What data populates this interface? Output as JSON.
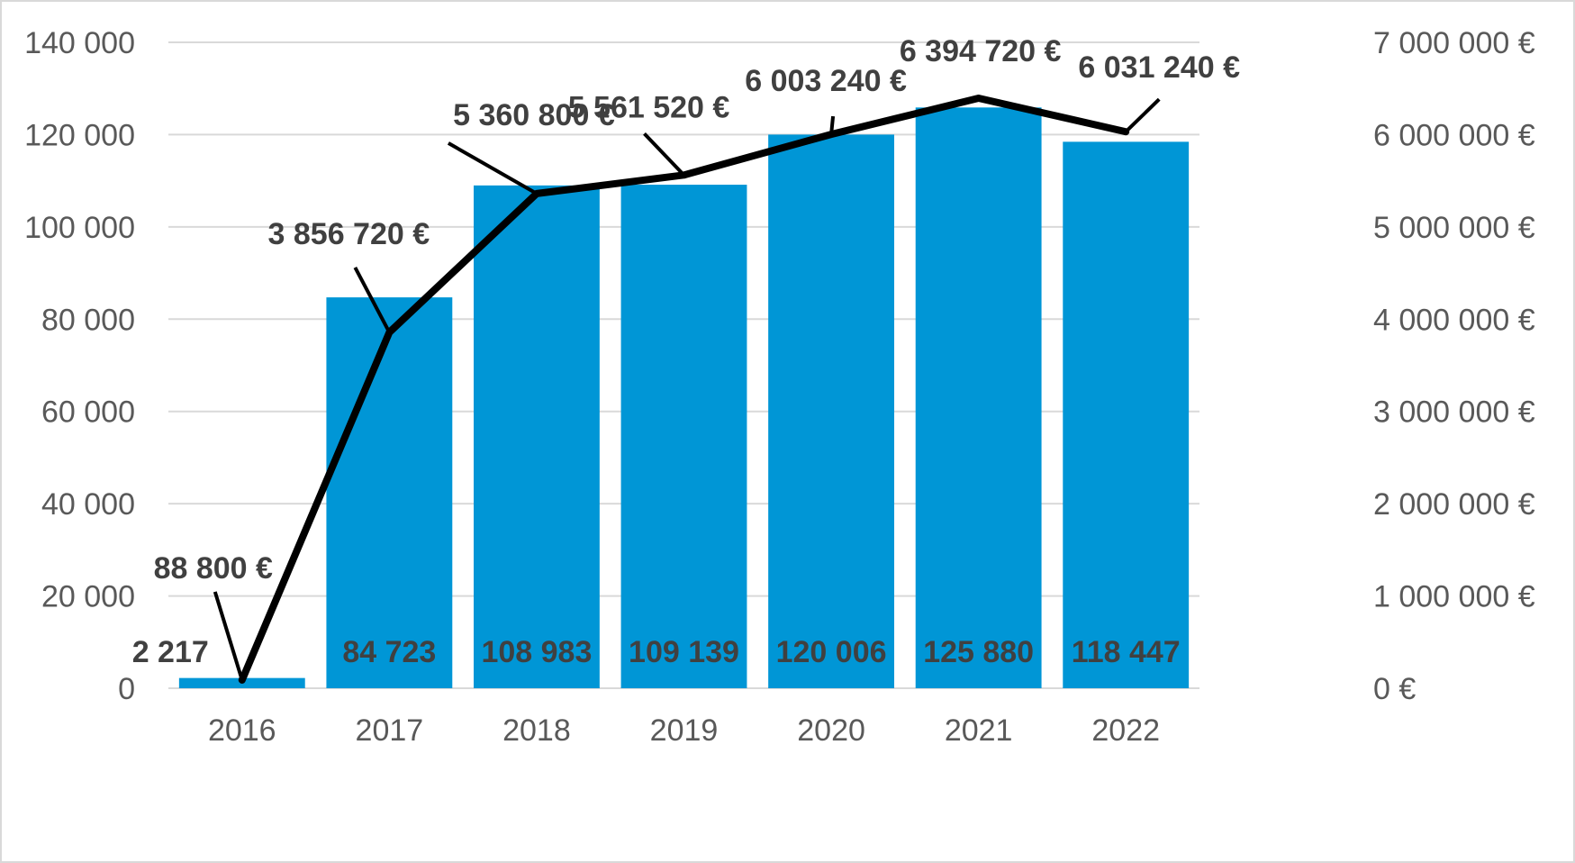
{
  "chart_data": {
    "type": "bar",
    "categories": [
      "2016",
      "2017",
      "2018",
      "2019",
      "2020",
      "2021",
      "2022"
    ],
    "series": [
      {
        "type": "bar",
        "axis": "left",
        "values": [
          2217,
          84723,
          108983,
          109139,
          120006,
          125880,
          118447
        ],
        "labels": [
          "2 217",
          "84 723",
          "108 983",
          "109 139",
          "120 006",
          "125 880",
          "118 447"
        ],
        "color": "#0096d6"
      },
      {
        "type": "line",
        "axis": "right",
        "values": [
          88800,
          3856720,
          5360800,
          5561520,
          6003240,
          6394720,
          6031240
        ],
        "labels": [
          "88 800 €",
          "3 856 720 €",
          "5 360 800 €",
          "5 561 520 €",
          "6 003 240 €",
          "6 394 720 €",
          "6 031 240 €"
        ],
        "color": "#000000"
      }
    ],
    "left_axis": {
      "ylim": [
        0,
        140000
      ],
      "ticks": [
        0,
        20000,
        40000,
        60000,
        80000,
        100000,
        120000,
        140000
      ],
      "tick_labels": [
        "0",
        "20 000",
        "40 000",
        "60 000",
        "80 000",
        "100 000",
        "120 000",
        "140 000"
      ]
    },
    "right_axis": {
      "ylim": [
        0,
        7000000
      ],
      "ticks": [
        0,
        1000000,
        2000000,
        3000000,
        4000000,
        5000000,
        6000000,
        7000000
      ],
      "tick_labels": [
        "0 €",
        "1 000 000 €",
        "2 000 000 €",
        "3 000 000 €",
        "4 000 000 €",
        "5 000 000 €",
        "6 000 000 €",
        "7 000 000 €"
      ]
    },
    "grid": true,
    "title": "",
    "xlabel": "",
    "ylabel": ""
  }
}
